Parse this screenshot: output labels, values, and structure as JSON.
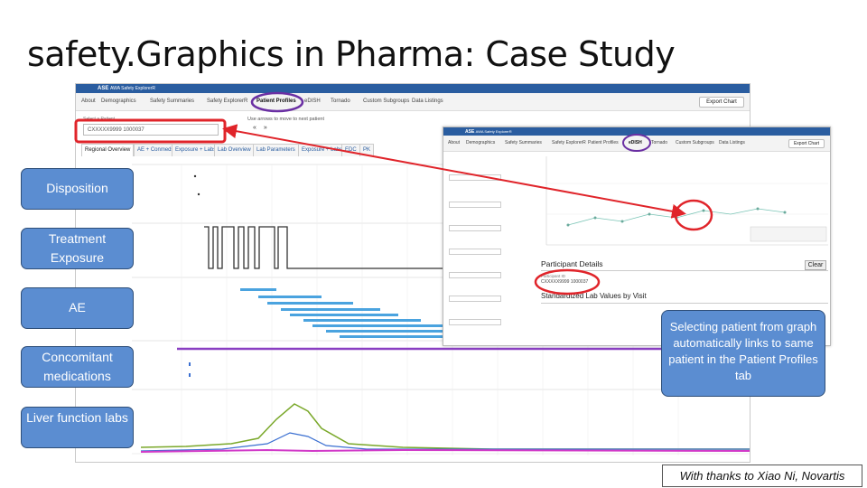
{
  "title": "safety.Graphics in Pharma: Case Study",
  "main_app": {
    "logo": "ASE",
    "app_name": "AWA Safety ExplorerR",
    "nav": [
      "About",
      "Demographics",
      "Safety Summaries",
      "Safety ExplorerR",
      "Patient Profiles",
      "eDISH",
      "Tornado",
      "Custom Subgroups",
      "Data Listings"
    ],
    "export_label": "Export Chart",
    "hint": "Use arrows to move to next patient",
    "arrows": "«   »",
    "patient_label": "Select a Patient",
    "patient_id": "CXXXXX9999 1000037",
    "tabs": [
      "Regional Overview",
      "AE + Conmeds",
      "Exposure + Labs",
      "Lab Overview",
      "Lab Parameters",
      "Exposure + Labs",
      "EDC",
      "PK"
    ]
  },
  "inset_app": {
    "logo": "ASE",
    "app_name": "AWA Safety ExplorerR",
    "nav": [
      "About",
      "Demographics",
      "Safety Summaries",
      "Safety ExplorerR",
      "Patient Profiles",
      "eDISH",
      "Tornado",
      "Custom Subgroups",
      "Data Listings"
    ],
    "export_label": "Export Chart",
    "participant_details": "Participant Details",
    "clear_label": "Clear",
    "participant_id_label": "Participant ID",
    "participant_id": "CXXXXX9999 1000037",
    "lab_values_title": "Standardized Lab Values by Visit"
  },
  "tracks": [
    {
      "id": "disposition",
      "label": "Disposition"
    },
    {
      "id": "treatment-exposure",
      "label": "Treatment Exposure"
    },
    {
      "id": "ae",
      "label": "AE"
    },
    {
      "id": "concomitant-medications",
      "label": "Concomitant medications"
    },
    {
      "id": "liver-function-labs",
      "label": "Liver function labs"
    }
  ],
  "callout": "Selecting patient from graph automatically links to same patient in the Patient Profiles tab",
  "credit": "With thanks to Xiao Ni, Novartis",
  "colors": {
    "label_fill": "#5b8dd1",
    "label_border": "#2e4e78",
    "highlight": "#e0242a",
    "nav_highlight": "#6a2fa3",
    "ae_bars": "#4aa3df",
    "conmed_line": "#8a3fc2",
    "lab_green": "#7aa82a",
    "lab_blue": "#3a6fd1",
    "lab_magenta": "#d13ac8"
  }
}
